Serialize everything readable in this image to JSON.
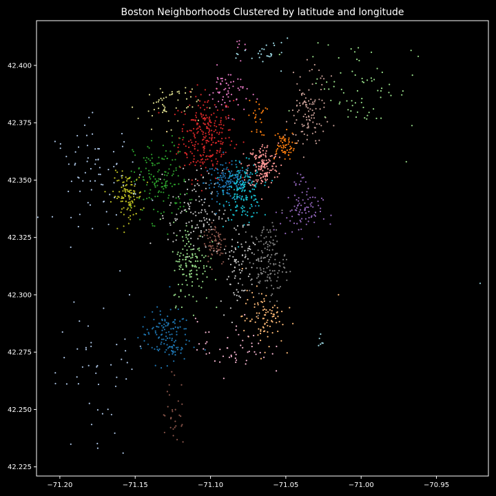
{
  "chart_data": {
    "type": "scatter",
    "title": "Boston Neighborhoods Clustered by latitude and longitude",
    "xlabel": "",
    "ylabel": "",
    "xlim": [
      -71.2155,
      -70.9155
    ],
    "ylim": [
      42.221,
      42.4195
    ],
    "x_ticks": [
      {
        "value": -71.2,
        "label": "−71.20"
      },
      {
        "value": -71.15,
        "label": "−71.15"
      },
      {
        "value": -71.1,
        "label": "−71.10"
      },
      {
        "value": -71.05,
        "label": "−71.05"
      },
      {
        "value": -71.0,
        "label": "−71.00"
      },
      {
        "value": -70.95,
        "label": "−70.95"
      }
    ],
    "y_ticks": [
      {
        "value": 42.225,
        "label": "42.225"
      },
      {
        "value": 42.25,
        "label": "42.250"
      },
      {
        "value": 42.275,
        "label": "42.275"
      },
      {
        "value": 42.3,
        "label": "42.300"
      },
      {
        "value": 42.325,
        "label": "42.325"
      },
      {
        "value": 42.35,
        "label": "42.350"
      },
      {
        "value": 42.375,
        "label": "42.375"
      },
      {
        "value": 42.4,
        "label": "42.400"
      }
    ],
    "grid": false,
    "background": "#000000",
    "axis_color": "#ffffff",
    "clusters": [
      {
        "color": "#d62728",
        "center": [
          -71.103,
          42.369
        ],
        "spread": [
          0.009,
          0.009
        ],
        "count": 260
      },
      {
        "color": "#1f77b4",
        "center": [
          -71.088,
          42.349
        ],
        "spread": [
          0.008,
          0.004
        ],
        "count": 150
      },
      {
        "color": "#17becf",
        "center": [
          -71.078,
          42.345
        ],
        "spread": [
          0.006,
          0.006
        ],
        "count": 160
      },
      {
        "color": "#ff9896",
        "center": [
          -71.065,
          42.356
        ],
        "spread": [
          0.005,
          0.005
        ],
        "count": 150
      },
      {
        "color": "#ff7f0e",
        "center": [
          -71.052,
          42.365
        ],
        "spread": [
          0.004,
          0.003
        ],
        "count": 60
      },
      {
        "color": "#ff7f0e",
        "center": [
          -71.069,
          42.377
        ],
        "spread": [
          0.003,
          0.004
        ],
        "count": 25
      },
      {
        "color": "#2ca02c",
        "center": [
          -71.133,
          42.35
        ],
        "spread": [
          0.009,
          0.009
        ],
        "count": 150
      },
      {
        "color": "#bcbd22",
        "center": [
          -71.155,
          42.343
        ],
        "spread": [
          0.005,
          0.005
        ],
        "count": 110
      },
      {
        "color": "#aec7e8",
        "center": [
          -71.175,
          42.353
        ],
        "spread": [
          0.014,
          0.011
        ],
        "count": 75
      },
      {
        "color": "#dbdb8d",
        "center": [
          -71.128,
          42.383
        ],
        "spread": [
          0.01,
          0.005
        ],
        "count": 55
      },
      {
        "color": "#e377c2",
        "center": [
          -71.088,
          42.389
        ],
        "spread": [
          0.007,
          0.005
        ],
        "count": 60
      },
      {
        "color": "#e377c2",
        "center": [
          -71.08,
          42.408
        ],
        "spread": [
          0.002,
          0.001
        ],
        "count": 6
      },
      {
        "color": "#9edae5",
        "center": [
          -71.062,
          42.405
        ],
        "spread": [
          0.008,
          0.003
        ],
        "count": 25
      },
      {
        "color": "#c49c94",
        "center": [
          -71.036,
          42.377
        ],
        "spread": [
          0.006,
          0.008
        ],
        "count": 95
      },
      {
        "color": "#c49c94",
        "center": [
          -71.033,
          42.392
        ],
        "spread": [
          0.006,
          0.004
        ],
        "count": 15
      },
      {
        "color": "#98df8a",
        "center": [
          -71.0,
          42.392
        ],
        "spread": [
          0.018,
          0.01
        ],
        "count": 70
      },
      {
        "color": "#9467bd",
        "center": [
          -71.04,
          42.336
        ],
        "spread": [
          0.007,
          0.005
        ],
        "count": 80
      },
      {
        "color": "#9467bd",
        "center": [
          -71.042,
          42.35
        ],
        "spread": [
          0.002,
          0.002
        ],
        "count": 10
      },
      {
        "color": "#c7c7c7",
        "center": [
          -71.11,
          42.336
        ],
        "spread": [
          0.009,
          0.009
        ],
        "count": 120
      },
      {
        "color": "#8c564b",
        "center": [
          -71.097,
          42.323
        ],
        "spread": [
          0.004,
          0.005
        ],
        "count": 70
      },
      {
        "color": "#98df8a",
        "center": [
          -71.113,
          42.314
        ],
        "spread": [
          0.006,
          0.009
        ],
        "count": 130
      },
      {
        "color": "#c7c7c7",
        "center": [
          -71.082,
          42.315
        ],
        "spread": [
          0.006,
          0.01
        ],
        "count": 90
      },
      {
        "color": "#7f7f7f",
        "center": [
          -71.062,
          42.315
        ],
        "spread": [
          0.006,
          0.008
        ],
        "count": 140
      },
      {
        "color": "#ffbb78",
        "center": [
          -71.065,
          42.29
        ],
        "spread": [
          0.007,
          0.006
        ],
        "count": 90
      },
      {
        "color": "#1f77b4",
        "center": [
          -71.13,
          42.282
        ],
        "spread": [
          0.008,
          0.006
        ],
        "count": 130
      },
      {
        "color": "#f7b6d2",
        "center": [
          -71.085,
          42.277
        ],
        "spread": [
          0.012,
          0.006
        ],
        "count": 50
      },
      {
        "color": "#8c564b",
        "center": [
          -71.125,
          42.249
        ],
        "spread": [
          0.004,
          0.008
        ],
        "count": 30
      },
      {
        "color": "#aec7e8",
        "center": [
          -71.17,
          42.27
        ],
        "spread": [
          0.015,
          0.018
        ],
        "count": 45
      },
      {
        "color": "#9edae5",
        "center": [
          -71.027,
          42.28
        ],
        "spread": [
          0.001,
          0.002
        ],
        "count": 6
      }
    ],
    "outlier_points": [
      {
        "x": -70.921,
        "y": 42.305,
        "color": "#9edae5"
      },
      {
        "x": -70.97,
        "y": 42.358,
        "color": "#98df8a"
      },
      {
        "x": -71.203,
        "y": 42.266,
        "color": "#aec7e8"
      },
      {
        "x": -71.158,
        "y": 42.231,
        "color": "#aec7e8"
      },
      {
        "x": -71.015,
        "y": 42.3,
        "color": "#ffbb78"
      }
    ]
  }
}
